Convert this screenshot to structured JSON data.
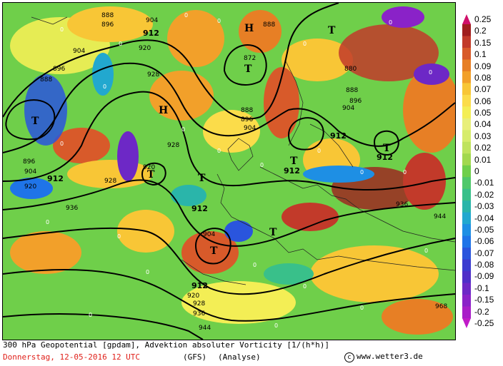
{
  "map": {
    "high_symbol": "H",
    "low_symbol": "T",
    "zero_label": "0",
    "contour_labels": [
      "888",
      "896",
      "904",
      "912",
      "920",
      "928",
      "936",
      "944",
      "968",
      "872",
      "880"
    ]
  },
  "legend": {
    "labels": [
      "0.25",
      "0.2",
      "0.15",
      "0.1",
      "0.09",
      "0.08",
      "0.07",
      "0.06",
      "0.05",
      "0.04",
      "0.03",
      "0.02",
      "0.01",
      "0",
      "-0.01",
      "-0.02",
      "-0.03",
      "-0.04",
      "-0.05",
      "-0.06",
      "-0.07",
      "-0.08",
      "-0.09",
      "-0.1",
      "-0.15",
      "-0.2",
      "-0.25"
    ],
    "colors": [
      "#d0106a",
      "#a01e1e",
      "#c23a2a",
      "#d85a2a",
      "#e77f25",
      "#f2a02a",
      "#f8c636",
      "#fbdc4a",
      "#f3ee55",
      "#e8ef7a",
      "#d6ec6b",
      "#bfe35d",
      "#a2d84e",
      "#6fcf4a",
      "#4fc86a",
      "#39c08a",
      "#2ab5aa",
      "#22a8cf",
      "#1e8fe4",
      "#1f74e8",
      "#2a55dd",
      "#3b3cd0",
      "#4f2fc8",
      "#6d28c6",
      "#8a22c8",
      "#a81ec8",
      "#c01bc8"
    ]
  },
  "footer": {
    "line1": "300 hPa Geopotential [gpdam], Advektion absoluter Vorticity [1/(h*h)]",
    "date": "Donnerstag, 12-05-2016  12 UTC",
    "model": "(GFS)",
    "analysis": "(Analyse)",
    "copyright": "www.wetter3.de"
  }
}
